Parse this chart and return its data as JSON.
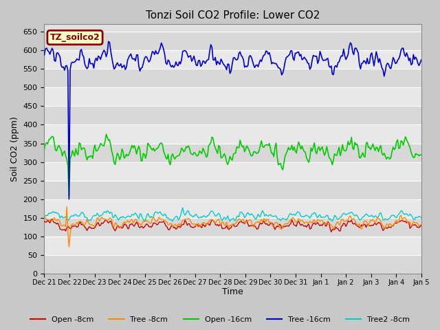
{
  "title": "Tonzi Soil CO2 Profile: Lower CO2",
  "xlabel": "Time",
  "ylabel": "Soil CO2 (ppm)",
  "ylim": [
    0,
    670
  ],
  "yticks": [
    0,
    50,
    100,
    150,
    200,
    250,
    300,
    350,
    400,
    450,
    500,
    550,
    600,
    650
  ],
  "legend_label": "TZ_soilco2",
  "fig_bg_color": "#c8c8c8",
  "plot_bg_color": "#e0e0e0",
  "band_colors": [
    "#d8d8d8",
    "#e8e8e8"
  ],
  "series": {
    "open_8cm": {
      "label": "Open -8cm",
      "color": "#cc0000",
      "lw": 1.0
    },
    "tree_8cm": {
      "label": "Tree -8cm",
      "color": "#ff8800",
      "lw": 1.0
    },
    "open_16cm": {
      "label": "Open -16cm",
      "color": "#00cc00",
      "lw": 1.2
    },
    "tree_16cm": {
      "label": "Tree -16cm",
      "color": "#0000cc",
      "lw": 1.2
    },
    "tree2_8cm": {
      "label": "Tree2 -8cm",
      "color": "#00cccc",
      "lw": 1.0
    }
  },
  "n_points": 336,
  "tree_16cm_mean": 575,
  "tree_16cm_std": 28,
  "open_16cm_mean": 330,
  "open_16cm_std": 30,
  "open_8cm_mean": 130,
  "open_8cm_std": 13,
  "tree_8cm_mean": 138,
  "tree_8cm_std": 13,
  "tree2_8cm_mean": 155,
  "tree2_8cm_std": 12
}
